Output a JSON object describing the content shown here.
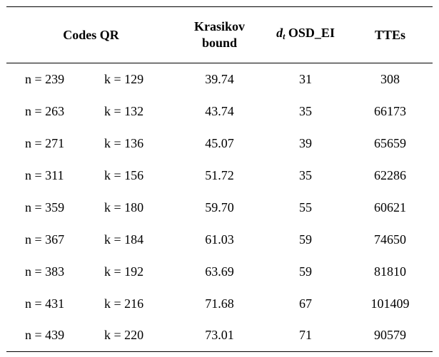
{
  "header": {
    "codes": "Codes QR",
    "krasikov_line1": "Krasikov",
    "krasikov_line2": "bound",
    "dt_symbol": "d",
    "dt_subscript": "t",
    "osd": " OSD_EI",
    "ttes": "TTEs"
  },
  "rows": [
    {
      "n": "n = 239",
      "k": "k = 129",
      "krasikov": "39.74",
      "dt": "31",
      "ttes": "308"
    },
    {
      "n": "n = 263",
      "k": "k = 132",
      "krasikov": "43.74",
      "dt": "35",
      "ttes": "66173"
    },
    {
      "n": "n = 271",
      "k": "k = 136",
      "krasikov": "45.07",
      "dt": "39",
      "ttes": "65659"
    },
    {
      "n": "n = 311",
      "k": "k = 156",
      "krasikov": "51.72",
      "dt": "35",
      "ttes": "62286"
    },
    {
      "n": "n = 359",
      "k": "k = 180",
      "krasikov": "59.70",
      "dt": "55",
      "ttes": "60621"
    },
    {
      "n": "n = 367",
      "k": "k = 184",
      "krasikov": "61.03",
      "dt": "59",
      "ttes": "74650"
    },
    {
      "n": "n = 383",
      "k": "k = 192",
      "krasikov": "63.69",
      "dt": "59",
      "ttes": "81810"
    },
    {
      "n": "n = 431",
      "k": "k = 216",
      "krasikov": "71.68",
      "dt": "67",
      "ttes": "101409"
    },
    {
      "n": "n = 439",
      "k": "k = 220",
      "krasikov": "73.01",
      "dt": "71",
      "ttes": "90579"
    }
  ]
}
